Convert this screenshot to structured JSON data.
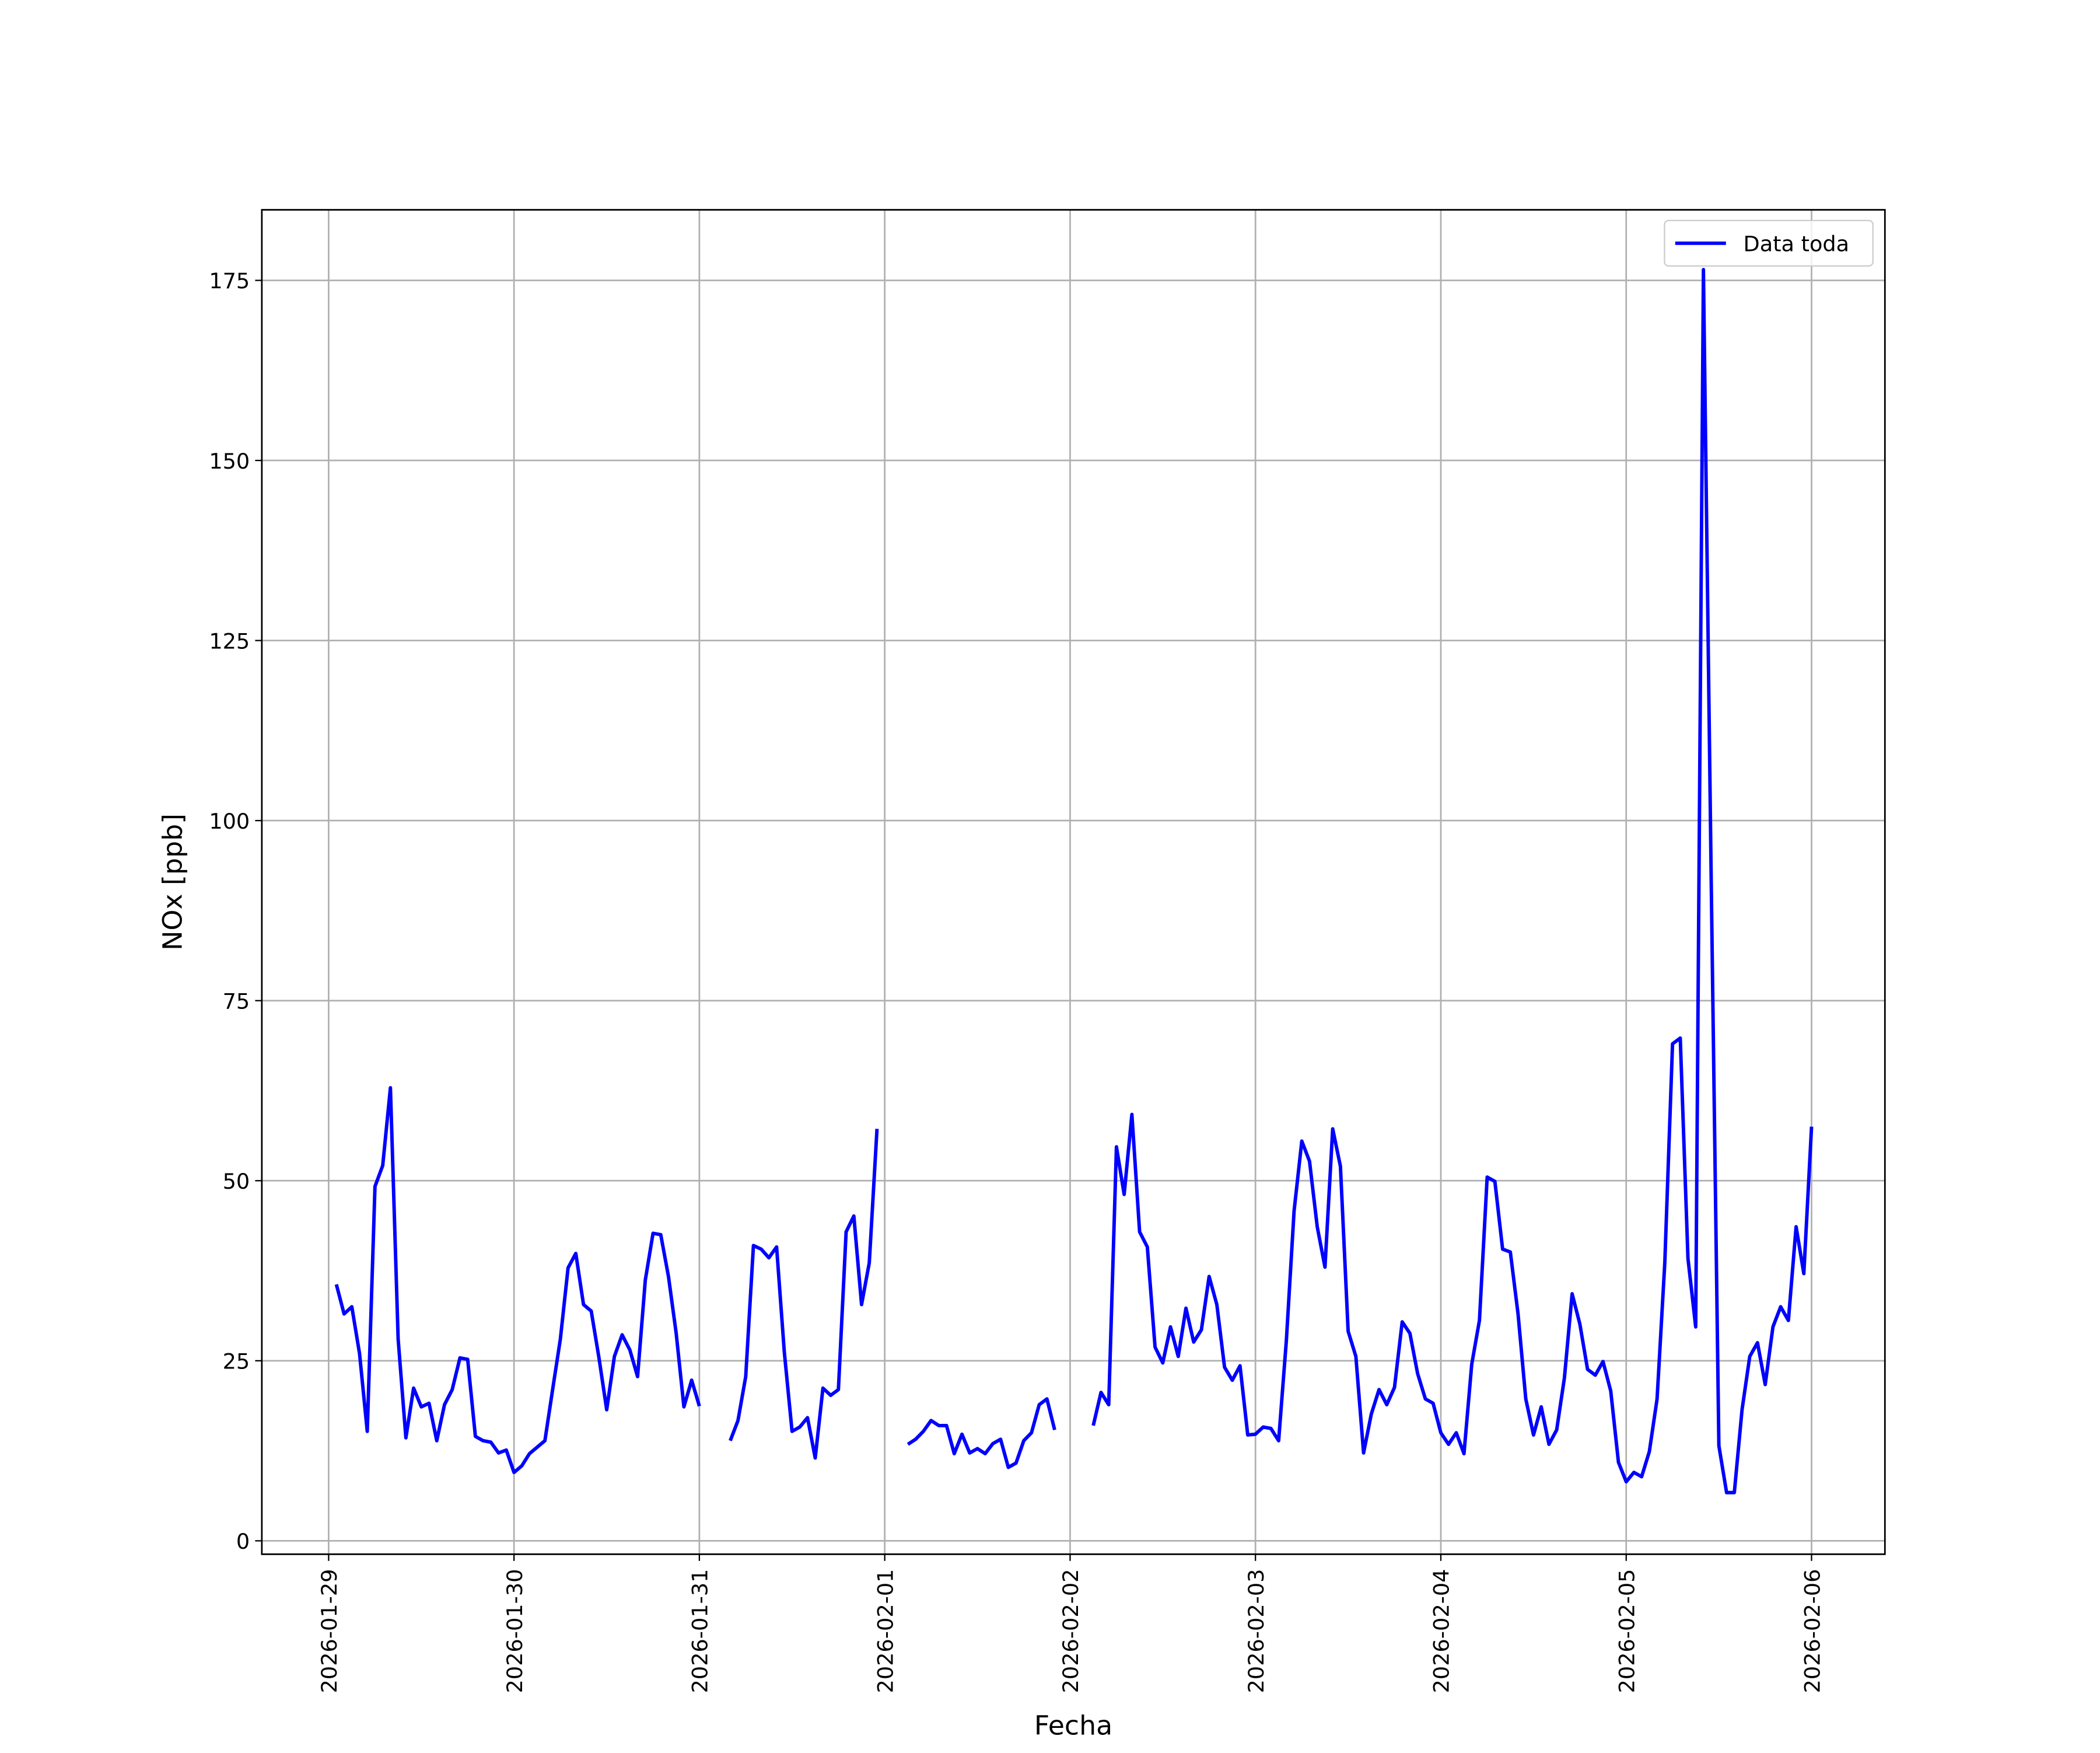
{
  "chart_data": {
    "type": "line",
    "xlabel": "Fecha",
    "ylabel": "NOx [ppb]",
    "x": [
      "2026-01-29 01:00",
      "2026-01-29 02:00",
      "2026-01-29 03:00",
      "2026-01-29 04:00",
      "2026-01-29 05:00",
      "2026-01-29 06:00",
      "2026-01-29 07:00",
      "2026-01-29 08:00",
      "2026-01-29 09:00",
      "2026-01-29 10:00",
      "2026-01-29 11:00",
      "2026-01-29 12:00",
      "2026-01-29 13:00",
      "2026-01-29 14:00",
      "2026-01-29 15:00",
      "2026-01-29 16:00",
      "2026-01-29 17:00",
      "2026-01-29 18:00",
      "2026-01-29 19:00",
      "2026-01-29 20:00",
      "2026-01-29 21:00",
      "2026-01-29 22:00",
      "2026-01-29 23:00",
      "2026-01-30 00:00",
      "2026-01-30 01:00",
      "2026-01-30 02:00",
      "2026-01-30 03:00",
      "2026-01-30 04:00",
      "2026-01-30 05:00",
      "2026-01-30 06:00",
      "2026-01-30 07:00",
      "2026-01-30 08:00",
      "2026-01-30 09:00",
      "2026-01-30 10:00",
      "2026-01-30 11:00",
      "2026-01-30 12:00",
      "2026-01-30 13:00",
      "2026-01-30 14:00",
      "2026-01-30 15:00",
      "2026-01-30 16:00",
      "2026-01-30 17:00",
      "2026-01-30 18:00",
      "2026-01-30 19:00",
      "2026-01-30 20:00",
      "2026-01-30 21:00",
      "2026-01-30 22:00",
      "2026-01-30 23:00",
      "2026-01-31 00:00",
      "2026-01-31 01:00",
      "2026-01-31 02:00",
      "2026-01-31 03:00",
      "2026-01-31 04:00",
      "2026-01-31 05:00",
      "2026-01-31 06:00",
      "2026-01-31 07:00",
      "2026-01-31 08:00",
      "2026-01-31 09:00",
      "2026-01-31 10:00",
      "2026-01-31 11:00",
      "2026-01-31 12:00",
      "2026-01-31 13:00",
      "2026-01-31 14:00",
      "2026-01-31 15:00",
      "2026-01-31 16:00",
      "2026-01-31 17:00",
      "2026-01-31 18:00",
      "2026-01-31 19:00",
      "2026-01-31 20:00",
      "2026-01-31 21:00",
      "2026-01-31 22:00",
      "2026-01-31 23:00",
      "2026-02-01 00:00",
      "2026-02-01 01:00",
      "2026-02-01 02:00",
      "2026-02-01 03:00",
      "2026-02-01 04:00",
      "2026-02-01 05:00",
      "2026-02-01 06:00",
      "2026-02-01 07:00",
      "2026-02-01 08:00",
      "2026-02-01 09:00",
      "2026-02-01 10:00",
      "2026-02-01 11:00",
      "2026-02-01 12:00",
      "2026-02-01 13:00",
      "2026-02-01 14:00",
      "2026-02-01 15:00",
      "2026-02-01 16:00",
      "2026-02-01 17:00",
      "2026-02-01 18:00",
      "2026-02-01 19:00",
      "2026-02-01 20:00",
      "2026-02-01 21:00",
      "2026-02-01 22:00",
      "2026-02-01 23:00",
      "2026-02-02 00:00",
      "2026-02-02 01:00",
      "2026-02-02 02:00",
      "2026-02-02 03:00",
      "2026-02-02 04:00",
      "2026-02-02 05:00",
      "2026-02-02 06:00",
      "2026-02-02 07:00",
      "2026-02-02 08:00",
      "2026-02-02 09:00",
      "2026-02-02 10:00",
      "2026-02-02 11:00",
      "2026-02-02 12:00",
      "2026-02-02 13:00",
      "2026-02-02 14:00",
      "2026-02-02 15:00",
      "2026-02-02 16:00",
      "2026-02-02 17:00",
      "2026-02-02 18:00",
      "2026-02-02 19:00",
      "2026-02-02 20:00",
      "2026-02-02 21:00",
      "2026-02-02 22:00",
      "2026-02-02 23:00",
      "2026-02-03 00:00",
      "2026-02-03 01:00",
      "2026-02-03 02:00",
      "2026-02-03 03:00",
      "2026-02-03 04:00",
      "2026-02-03 05:00",
      "2026-02-03 06:00",
      "2026-02-03 07:00",
      "2026-02-03 08:00",
      "2026-02-03 09:00",
      "2026-02-03 10:00",
      "2026-02-03 11:00",
      "2026-02-03 12:00",
      "2026-02-03 13:00",
      "2026-02-03 14:00",
      "2026-02-03 15:00",
      "2026-02-03 16:00",
      "2026-02-03 17:00",
      "2026-02-03 18:00",
      "2026-02-03 19:00",
      "2026-02-03 20:00",
      "2026-02-03 21:00",
      "2026-02-03 22:00",
      "2026-02-03 23:00",
      "2026-02-04 00:00",
      "2026-02-04 01:00",
      "2026-02-04 02:00",
      "2026-02-04 03:00",
      "2026-02-04 04:00",
      "2026-02-04 05:00",
      "2026-02-04 06:00",
      "2026-02-04 07:00",
      "2026-02-04 08:00",
      "2026-02-04 09:00",
      "2026-02-04 10:00",
      "2026-02-04 11:00",
      "2026-02-04 12:00",
      "2026-02-04 13:00",
      "2026-02-04 14:00",
      "2026-02-04 15:00",
      "2026-02-04 16:00",
      "2026-02-04 17:00",
      "2026-02-04 18:00",
      "2026-02-04 19:00",
      "2026-02-04 20:00",
      "2026-02-04 21:00",
      "2026-02-04 22:00",
      "2026-02-04 23:00",
      "2026-02-05 00:00",
      "2026-02-05 01:00",
      "2026-02-05 02:00",
      "2026-02-05 03:00",
      "2026-02-05 04:00",
      "2026-02-05 05:00",
      "2026-02-05 06:00",
      "2026-02-05 07:00",
      "2026-02-05 08:00",
      "2026-02-05 09:00",
      "2026-02-05 10:00",
      "2026-02-05 11:00",
      "2026-02-05 12:00",
      "2026-02-05 13:00",
      "2026-02-05 14:00",
      "2026-02-05 15:00",
      "2026-02-05 16:00",
      "2026-02-05 17:00",
      "2026-02-05 18:00",
      "2026-02-05 19:00",
      "2026-02-05 20:00",
      "2026-02-05 21:00",
      "2026-02-05 22:00",
      "2026-02-05 23:00",
      "2026-02-06 00:00"
    ],
    "series": [
      {
        "name": "Data toda",
        "color": "#0000ff",
        "values": [
          35.6,
          31.5,
          32.5,
          26,
          15.2,
          49.2,
          52.1,
          62.9,
          28,
          14.3,
          21.2,
          18.6,
          19.1,
          13.9,
          18.9,
          21,
          25.4,
          25.2,
          14.5,
          13.9,
          13.7,
          12.2,
          12.6,
          9.5,
          10.4,
          12.1,
          13,
          13.9,
          21,
          28,
          37.9,
          39.9,
          32.8,
          31.9,
          25.4,
          18.2,
          25.6,
          28.6,
          26.5,
          22.8,
          36.2,
          42.7,
          42.5,
          36.7,
          28.8,
          18.6,
          22.3,
          18.7,
          null,
          null,
          null,
          13.9,
          16.7,
          22.8,
          41,
          40.5,
          39.3,
          40.8,
          26.2,
          15.2,
          15.8,
          17.1,
          11.5,
          21.2,
          20.2,
          21,
          42.9,
          45.1,
          32.8,
          38.6,
          57.2,
          null,
          null,
          null,
          13.4,
          14.1,
          15.2,
          16.7,
          16,
          16,
          12.1,
          14.8,
          12.2,
          12.8,
          12.1,
          13.5,
          14.1,
          10.2,
          10.8,
          13.9,
          15,
          18.9,
          19.7,
          15.4,
          null,
          null,
          null,
          null,
          16,
          20.6,
          18.9,
          54.7,
          48.1,
          59.2,
          42.9,
          40.8,
          26.9,
          24.7,
          29.7,
          25.6,
          32.3,
          27.6,
          29.3,
          36.7,
          32.8,
          24.1,
          22.3,
          24.3,
          14.7,
          14.8,
          15.8,
          15.6,
          13.9,
          27.8,
          45.8,
          55.5,
          52.7,
          43.6,
          38,
          57.2,
          52,
          29.1,
          25.6,
          12.2,
          17.6,
          21,
          18.9,
          21.3,
          30.4,
          28.8,
          23.2,
          19.7,
          19.1,
          15,
          13.4,
          15,
          12.1,
          24.5,
          30.6,
          50.5,
          49.9,
          40.5,
          40.1,
          31.5,
          19.7,
          14.7,
          18.6,
          13.4,
          15.4,
          22.6,
          34.3,
          30.1,
          23.8,
          23,
          24.9,
          20.8,
          10.9,
          8.2,
          9.5,
          8.9,
          12.4,
          19.7,
          38.6,
          69,
          69.8,
          39.2,
          29.7,
          176.5,
          92.4,
          13.2,
          6.7,
          6.7,
          18.2,
          25.6,
          27.5,
          21.7,
          29.7,
          32.5,
          30.6,
          43.6,
          37.1,
          57.5
        ]
      }
    ],
    "xlim": [
      "2026-01-28 15:21",
      "2026-02-06 09:30"
    ],
    "xticks": [
      "2026-01-29",
      "2026-01-30",
      "2026-01-31",
      "2026-02-01",
      "2026-02-02",
      "2026-02-03",
      "2026-02-04",
      "2026-02-05",
      "2026-02-06"
    ],
    "ylim": [
      -1.86,
      184.8
    ],
    "yticks": [
      0,
      25,
      50,
      75,
      100,
      125,
      150,
      175
    ],
    "grid": true,
    "legend": "upper right"
  }
}
